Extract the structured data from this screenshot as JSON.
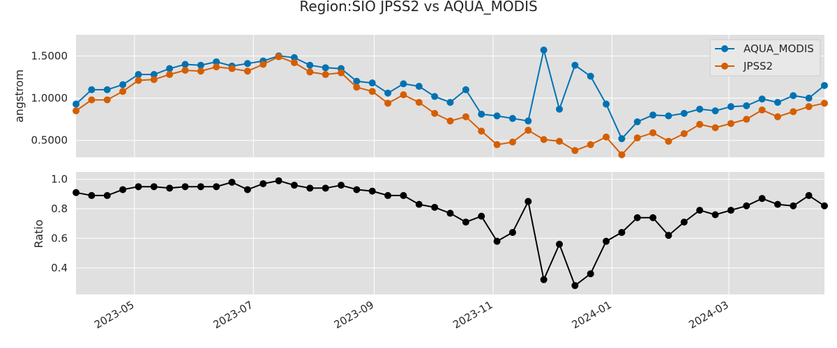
{
  "chart_data": [
    {
      "type": "line",
      "title": "Region:SIO JPSS2 vs AQUA_MODIS",
      "xlabel": "",
      "ylabel": "angstrom",
      "ylim": [
        0.3,
        1.75
      ],
      "yticks": [
        0.5,
        1.0,
        1.5
      ],
      "ytick_labels": [
        "0.5000",
        "1.0000",
        "1.5000"
      ],
      "grid": true,
      "legend": "top-right",
      "x": [
        "2023-04-01",
        "2023-04-09",
        "2023-04-17",
        "2023-04-25",
        "2023-05-03",
        "2023-05-11",
        "2023-05-19",
        "2023-05-27",
        "2023-06-04",
        "2023-06-12",
        "2023-06-20",
        "2023-06-28",
        "2023-07-06",
        "2023-07-14",
        "2023-07-22",
        "2023-07-30",
        "2023-08-07",
        "2023-08-15",
        "2023-08-23",
        "2023-08-31",
        "2023-09-08",
        "2023-09-16",
        "2023-09-24",
        "2023-10-02",
        "2023-10-10",
        "2023-10-18",
        "2023-10-26",
        "2023-11-03",
        "2023-11-11",
        "2023-11-19",
        "2023-11-27",
        "2023-12-05",
        "2023-12-13",
        "2023-12-21",
        "2023-12-29",
        "2024-01-06",
        "2024-01-14",
        "2024-01-22",
        "2024-01-30",
        "2024-02-07",
        "2024-02-15",
        "2024-02-23",
        "2024-03-02",
        "2024-03-10",
        "2024-03-18",
        "2024-03-26",
        "2024-04-03",
        "2024-04-11",
        "2024-04-19"
      ],
      "series": [
        {
          "name": "AQUA_MODIS",
          "color": "#0072b2",
          "values": [
            0.93,
            1.1,
            1.1,
            1.16,
            1.28,
            1.28,
            1.35,
            1.4,
            1.39,
            1.43,
            1.38,
            1.41,
            1.44,
            1.5,
            1.48,
            1.39,
            1.36,
            1.35,
            1.2,
            1.18,
            1.06,
            1.17,
            1.14,
            1.02,
            0.95,
            1.1,
            0.81,
            0.79,
            0.76,
            0.73,
            1.57,
            0.87,
            1.39,
            1.26,
            0.93,
            0.52,
            0.72,
            0.8,
            0.79,
            0.82,
            0.87,
            0.85,
            0.9,
            0.91,
            0.99,
            0.95,
            1.03,
            1.0,
            1.15
          ]
        },
        {
          "name": "JPSS2",
          "color": "#d55e00",
          "values": [
            0.85,
            0.98,
            0.98,
            1.08,
            1.21,
            1.22,
            1.28,
            1.33,
            1.32,
            1.37,
            1.35,
            1.32,
            1.4,
            1.49,
            1.42,
            1.31,
            1.28,
            1.3,
            1.13,
            1.08,
            0.94,
            1.04,
            0.95,
            0.82,
            0.73,
            0.78,
            0.61,
            0.45,
            0.48,
            0.62,
            0.51,
            0.49,
            0.38,
            0.45,
            0.54,
            0.33,
            0.53,
            0.59,
            0.49,
            0.58,
            0.69,
            0.65,
            0.7,
            0.75,
            0.86,
            0.78,
            0.84,
            0.9,
            0.94
          ]
        }
      ]
    },
    {
      "type": "line",
      "title": "",
      "xlabel": "",
      "ylabel": "Ratio",
      "ylim": [
        0.22,
        1.05
      ],
      "yticks": [
        0.4,
        0.6,
        0.8,
        1.0
      ],
      "ytick_labels": [
        "0.4",
        "0.6",
        "0.8",
        "1.0"
      ],
      "xticks": [
        "2023-05-01",
        "2023-07-01",
        "2023-09-01",
        "2023-11-01",
        "2024-01-01",
        "2024-03-01"
      ],
      "xtick_labels": [
        "2023-05",
        "2023-07",
        "2023-09",
        "2023-11",
        "2024-01",
        "2024-03"
      ],
      "grid": true,
      "x": [
        "2023-04-01",
        "2023-04-09",
        "2023-04-17",
        "2023-04-25",
        "2023-05-03",
        "2023-05-11",
        "2023-05-19",
        "2023-05-27",
        "2023-06-04",
        "2023-06-12",
        "2023-06-20",
        "2023-06-28",
        "2023-07-06",
        "2023-07-14",
        "2023-07-22",
        "2023-07-30",
        "2023-08-07",
        "2023-08-15",
        "2023-08-23",
        "2023-08-31",
        "2023-09-08",
        "2023-09-16",
        "2023-09-24",
        "2023-10-02",
        "2023-10-10",
        "2023-10-18",
        "2023-10-26",
        "2023-11-03",
        "2023-11-11",
        "2023-11-19",
        "2023-11-27",
        "2023-12-05",
        "2023-12-13",
        "2023-12-21",
        "2023-12-29",
        "2024-01-06",
        "2024-01-14",
        "2024-01-22",
        "2024-01-30",
        "2024-02-07",
        "2024-02-15",
        "2024-02-23",
        "2024-03-02",
        "2024-03-10",
        "2024-03-18",
        "2024-03-26",
        "2024-04-03",
        "2024-04-11",
        "2024-04-19"
      ],
      "series": [
        {
          "color": "#000000",
          "values": [
            0.91,
            0.89,
            0.89,
            0.93,
            0.95,
            0.95,
            0.94,
            0.95,
            0.95,
            0.95,
            0.98,
            0.93,
            0.97,
            0.99,
            0.96,
            0.94,
            0.94,
            0.96,
            0.93,
            0.92,
            0.89,
            0.89,
            0.83,
            0.81,
            0.77,
            0.71,
            0.75,
            0.58,
            0.64,
            0.85,
            0.32,
            0.56,
            0.28,
            0.36,
            0.58,
            0.64,
            0.74,
            0.74,
            0.62,
            0.71,
            0.79,
            0.76,
            0.79,
            0.82,
            0.87,
            0.83,
            0.82,
            0.89,
            0.82
          ]
        }
      ]
    }
  ]
}
